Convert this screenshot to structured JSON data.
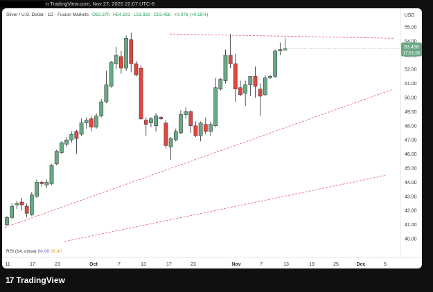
{
  "topbar": {
    "caption": "n TradingView.com, Nov 27, 2025 22:07 UTC-6"
  },
  "legend": {
    "symbol": "Silver / U.S. Dollar · 1D · Fusion Markets",
    "o": "O53.370",
    "h": "H54.191",
    "l": "L53.332",
    "c": "C53.458",
    "chg": "+0.078 (+0.15%)"
  },
  "axis": {
    "currency": "USD",
    "price_label": "53.458",
    "countdown": "17:51:56"
  },
  "rsi": {
    "label": "RSI (14, close)",
    "v1": "64.08",
    "v2": "58.40"
  },
  "brand": {
    "name": "TradingView"
  },
  "colors": {
    "up": "#6aa986",
    "down": "#e0463f",
    "trend": "#e56b7a"
  },
  "chart_data": {
    "type": "candlestick",
    "title": "Silver / U.S. Dollar",
    "ylabel": "USD",
    "ylim": [
      39.5,
      55.6
    ],
    "y_ticks": [
      40.0,
      41.0,
      42.0,
      43.0,
      44.0,
      45.0,
      46.0,
      47.0,
      48.0,
      49.0,
      50.0,
      51.0,
      52.0,
      53.0,
      54.0,
      55.0
    ],
    "x_ticks": [
      "11",
      "17",
      "23",
      "Oct",
      "7",
      "13",
      "17",
      "23",
      "Nov",
      "7",
      "13",
      "19",
      "25",
      "Dec",
      "5"
    ],
    "candles": [
      {
        "o": 41.0,
        "h": 41.6,
        "l": 40.9,
        "c": 41.5
      },
      {
        "o": 41.5,
        "h": 42.5,
        "l": 41.4,
        "c": 42.3
      },
      {
        "o": 42.4,
        "h": 42.7,
        "l": 42.1,
        "c": 42.5
      },
      {
        "o": 42.6,
        "h": 42.9,
        "l": 42.0,
        "c": 42.4
      },
      {
        "o": 42.3,
        "h": 42.5,
        "l": 41.5,
        "c": 41.8
      },
      {
        "o": 41.7,
        "h": 43.3,
        "l": 41.6,
        "c": 43.1
      },
      {
        "o": 43.0,
        "h": 44.2,
        "l": 42.9,
        "c": 44.0
      },
      {
        "o": 44.0,
        "h": 44.1,
        "l": 43.7,
        "c": 43.9
      },
      {
        "o": 43.8,
        "h": 44.2,
        "l": 43.6,
        "c": 44.0
      },
      {
        "o": 43.9,
        "h": 45.3,
        "l": 43.8,
        "c": 45.2
      },
      {
        "o": 45.3,
        "h": 46.3,
        "l": 45.2,
        "c": 46.2
      },
      {
        "o": 46.1,
        "h": 46.9,
        "l": 46.0,
        "c": 46.8
      },
      {
        "o": 46.7,
        "h": 47.2,
        "l": 46.5,
        "c": 47.0
      },
      {
        "o": 47.0,
        "h": 47.6,
        "l": 46.8,
        "c": 47.4
      },
      {
        "o": 47.6,
        "h": 47.7,
        "l": 46.0,
        "c": 47.1
      },
      {
        "o": 47.4,
        "h": 48.5,
        "l": 47.3,
        "c": 48.2
      },
      {
        "o": 48.2,
        "h": 48.6,
        "l": 47.8,
        "c": 48.4
      },
      {
        "o": 48.5,
        "h": 48.7,
        "l": 47.6,
        "c": 47.9
      },
      {
        "o": 47.9,
        "h": 48.9,
        "l": 47.8,
        "c": 48.7
      },
      {
        "o": 48.7,
        "h": 49.9,
        "l": 48.6,
        "c": 49.7
      },
      {
        "o": 49.7,
        "h": 51.9,
        "l": 49.6,
        "c": 50.9
      },
      {
        "o": 50.8,
        "h": 52.6,
        "l": 50.7,
        "c": 52.5
      },
      {
        "o": 52.4,
        "h": 53.6,
        "l": 52.0,
        "c": 53.0
      },
      {
        "o": 52.9,
        "h": 53.3,
        "l": 51.7,
        "c": 52.1
      },
      {
        "o": 52.1,
        "h": 54.4,
        "l": 51.9,
        "c": 54.2
      },
      {
        "o": 54.1,
        "h": 54.6,
        "l": 51.8,
        "c": 52.4
      },
      {
        "o": 52.4,
        "h": 52.6,
        "l": 51.5,
        "c": 51.6
      },
      {
        "o": 52.1,
        "h": 52.3,
        "l": 48.4,
        "c": 48.5
      },
      {
        "o": 48.4,
        "h": 48.6,
        "l": 47.3,
        "c": 48.1
      },
      {
        "o": 48.2,
        "h": 48.6,
        "l": 47.9,
        "c": 48.5
      },
      {
        "o": 48.0,
        "h": 48.9,
        "l": 47.6,
        "c": 48.7
      },
      {
        "o": 48.6,
        "h": 48.7,
        "l": 48.4,
        "c": 48.5
      },
      {
        "o": 48.2,
        "h": 48.4,
        "l": 46.4,
        "c": 46.6
      },
      {
        "o": 46.5,
        "h": 47.2,
        "l": 45.6,
        "c": 47.1
      },
      {
        "o": 47.0,
        "h": 47.8,
        "l": 46.9,
        "c": 47.6
      },
      {
        "o": 47.5,
        "h": 49.1,
        "l": 47.4,
        "c": 48.8
      },
      {
        "o": 48.8,
        "h": 49.3,
        "l": 48.5,
        "c": 49.0
      },
      {
        "o": 49.0,
        "h": 49.1,
        "l": 47.5,
        "c": 48.0
      },
      {
        "o": 48.0,
        "h": 48.3,
        "l": 47.2,
        "c": 47.3
      },
      {
        "o": 47.3,
        "h": 48.3,
        "l": 46.9,
        "c": 48.2
      },
      {
        "o": 48.1,
        "h": 48.6,
        "l": 47.4,
        "c": 47.6
      },
      {
        "o": 47.6,
        "h": 48.3,
        "l": 47.3,
        "c": 48.1
      },
      {
        "o": 48.0,
        "h": 51.4,
        "l": 47.9,
        "c": 50.7
      },
      {
        "o": 50.6,
        "h": 51.4,
        "l": 50.5,
        "c": 51.3
      },
      {
        "o": 51.2,
        "h": 53.4,
        "l": 51.0,
        "c": 53.0
      },
      {
        "o": 53.0,
        "h": 54.5,
        "l": 52.1,
        "c": 52.4
      },
      {
        "o": 52.4,
        "h": 53.1,
        "l": 49.7,
        "c": 50.6
      },
      {
        "o": 50.7,
        "h": 51.2,
        "l": 50.1,
        "c": 50.2
      },
      {
        "o": 50.3,
        "h": 51.2,
        "l": 49.4,
        "c": 50.9
      },
      {
        "o": 50.9,
        "h": 51.4,
        "l": 50.1,
        "c": 51.5
      },
      {
        "o": 51.5,
        "h": 52.2,
        "l": 50.0,
        "c": 50.8
      },
      {
        "o": 50.6,
        "h": 51.0,
        "l": 48.7,
        "c": 50.1
      },
      {
        "o": 50.2,
        "h": 51.6,
        "l": 50.1,
        "c": 51.4
      },
      {
        "o": 51.4,
        "h": 51.6,
        "l": 51.3,
        "c": 51.5
      },
      {
        "o": 51.5,
        "h": 53.4,
        "l": 51.4,
        "c": 53.3
      },
      {
        "o": 53.3,
        "h": 53.9,
        "l": 53.0,
        "c": 53.4
      },
      {
        "o": 53.37,
        "h": 54.191,
        "l": 53.332,
        "c": 53.458
      }
    ],
    "trendlines": [
      {
        "x1": "Sep 10",
        "y1": 40.8,
        "x2": "Dec 5",
        "y2": 50.6
      },
      {
        "x1": "Sep 22",
        "y1": 39.8,
        "x2": "Dec 5",
        "y2": 44.5
      },
      {
        "x1": "Oct 17",
        "y1": 54.5,
        "x2": "Dec 5",
        "y2": 54.2
      }
    ]
  }
}
